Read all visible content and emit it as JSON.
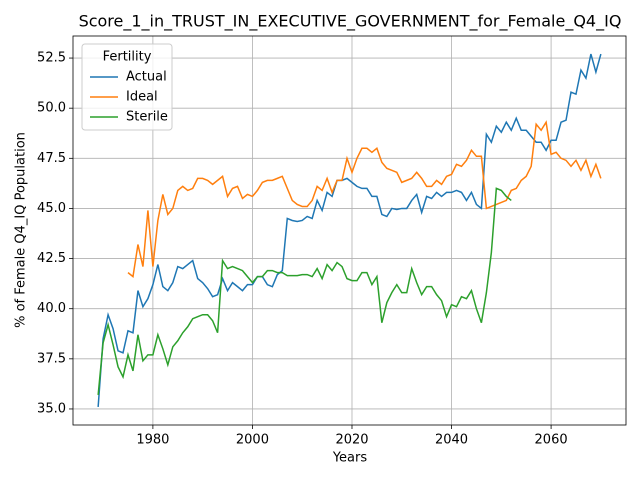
{
  "chart_data": {
    "type": "line",
    "title": "Score_1_in_TRUST_IN_EXECUTIVE_GOVERNMENT_for_Female_Q4_IQ",
    "x_label": "Years",
    "y_label": "% of Female Q4_IQ Population",
    "legend_title": "Fertility",
    "legend_position": "upper left",
    "grid": true,
    "xlim": [
      1963.95,
      2075.05
    ],
    "ylim": [
      34.2,
      53.6
    ],
    "xticks": [
      1980,
      2000,
      2020,
      2040,
      2060
    ],
    "yticks": [
      {
        "value": 35,
        "label": "35.0"
      },
      37.5,
      {
        "value": 40,
        "label": "40.0"
      },
      42.5,
      {
        "value": 45,
        "label": "45.0"
      },
      47.5,
      {
        "value": 50,
        "label": "50.0"
      },
      52.5
    ],
    "x": [
      1969,
      1970,
      1971,
      1972,
      1973,
      1974,
      1975,
      1976,
      1977,
      1978,
      1979,
      1980,
      1981,
      1982,
      1983,
      1984,
      1985,
      1986,
      1987,
      1988,
      1989,
      1990,
      1991,
      1992,
      1993,
      1994,
      1995,
      1996,
      1997,
      1998,
      1999,
      2000,
      2001,
      2002,
      2003,
      2004,
      2005,
      2006,
      2007,
      2008,
      2009,
      2010,
      2011,
      2012,
      2013,
      2014,
      2015,
      2016,
      2017,
      2018,
      2019,
      2020,
      2021,
      2022,
      2023,
      2024,
      2025,
      2026,
      2027,
      2028,
      2029,
      2030,
      2031,
      2032,
      2033,
      2034,
      2035,
      2036,
      2037,
      2038,
      2039,
      2040,
      2041,
      2042,
      2043,
      2044,
      2045,
      2046,
      2047,
      2048,
      2049,
      2050,
      2051,
      2052,
      2053,
      2054,
      2055,
      2056,
      2057,
      2058,
      2059,
      2060,
      2061,
      2062,
      2063,
      2064,
      2065,
      2066,
      2067,
      2068,
      2069,
      2070
    ],
    "series": [
      {
        "name": "Actual",
        "color": "#1f77b4",
        "values": [
          35.1,
          38.5,
          39.7,
          39.0,
          37.9,
          37.8,
          38.9,
          38.8,
          40.9,
          40.1,
          40.5,
          41.2,
          42.2,
          41.1,
          40.9,
          41.3,
          42.1,
          42.0,
          42.2,
          42.4,
          41.5,
          41.3,
          41.0,
          40.6,
          40.7,
          41.5,
          40.9,
          41.3,
          41.1,
          40.9,
          41.2,
          41.2,
          41.6,
          41.6,
          41.2,
          41.1,
          41.7,
          41.9,
          44.5,
          44.4,
          44.35,
          44.4,
          44.6,
          44.5,
          45.4,
          44.9,
          45.8,
          45.6,
          46.4,
          46.4,
          46.5,
          46.3,
          46.1,
          46.0,
          46.0,
          45.6,
          45.6,
          44.7,
          44.6,
          45.0,
          44.95,
          45.0,
          45.0,
          45.4,
          45.7,
          44.8,
          45.6,
          45.5,
          45.8,
          45.6,
          45.8,
          45.8,
          45.9,
          45.8,
          45.4,
          45.8,
          45.2,
          45.0,
          48.7,
          48.3,
          49.1,
          48.8,
          49.3,
          48.9,
          49.5,
          48.9,
          48.9,
          48.6,
          48.3,
          48.3,
          47.9,
          48.4,
          48.4,
          49.3,
          49.4,
          50.8,
          50.7,
          51.9,
          51.5,
          52.7,
          51.8,
          52.7
        ]
      },
      {
        "name": "Ideal",
        "color": "#ff7f0e",
        "values": [
          null,
          null,
          null,
          null,
          null,
          null,
          41.8,
          41.6,
          43.2,
          42.1,
          44.9,
          42.1,
          44.4,
          45.7,
          44.7,
          45.0,
          45.9,
          46.1,
          45.9,
          46.0,
          46.5,
          46.5,
          46.4,
          46.2,
          46.4,
          46.6,
          45.6,
          46.0,
          46.1,
          45.5,
          45.7,
          45.6,
          45.9,
          46.3,
          46.4,
          46.4,
          46.5,
          46.6,
          46.0,
          45.4,
          45.2,
          45.1,
          45.1,
          45.4,
          46.1,
          45.9,
          46.5,
          45.8,
          46.4,
          46.4,
          47.5,
          46.8,
          47.5,
          48.0,
          48.0,
          47.8,
          48.0,
          47.3,
          47.0,
          46.9,
          46.8,
          46.3,
          46.4,
          46.5,
          46.8,
          46.5,
          46.1,
          46.1,
          46.4,
          46.2,
          46.6,
          46.7,
          47.2,
          47.1,
          47.4,
          47.9,
          47.6,
          47.6,
          45.0,
          45.1,
          45.2,
          45.3,
          45.4,
          45.9,
          46.0,
          46.4,
          46.6,
          47.1,
          49.2,
          48.9,
          49.3,
          47.7,
          47.8,
          47.5,
          47.4,
          47.1,
          47.4,
          46.9,
          47.4,
          46.6,
          47.2,
          46.5
        ]
      },
      {
        "name": "Sterile",
        "color": "#2ca02c",
        "values": [
          35.7,
          38.3,
          39.2,
          38.2,
          37.1,
          36.6,
          37.7,
          36.9,
          38.7,
          37.4,
          37.7,
          37.7,
          38.7,
          38.0,
          37.2,
          38.1,
          38.4,
          38.8,
          39.1,
          39.5,
          39.6,
          39.7,
          39.7,
          39.4,
          38.8,
          42.4,
          42.0,
          42.1,
          42.0,
          41.9,
          41.6,
          41.3,
          41.6,
          41.6,
          41.9,
          41.9,
          41.8,
          41.8,
          41.65,
          41.65,
          41.65,
          41.7,
          41.7,
          41.6,
          42.0,
          41.5,
          42.2,
          41.9,
          42.3,
          42.1,
          41.5,
          41.4,
          41.4,
          41.8,
          41.8,
          41.2,
          41.6,
          39.3,
          40.3,
          40.8,
          41.2,
          40.8,
          40.8,
          42.0,
          41.3,
          40.7,
          41.1,
          41.1,
          40.7,
          40.4,
          39.6,
          40.2,
          40.1,
          40.6,
          40.5,
          40.9,
          40.0,
          39.3,
          40.8,
          42.8,
          46.0,
          45.9,
          45.6,
          45.4,
          null,
          null,
          null,
          null,
          null,
          null,
          null,
          null,
          null,
          null,
          null,
          null,
          null,
          null,
          null,
          null,
          null,
          null
        ]
      }
    ]
  }
}
